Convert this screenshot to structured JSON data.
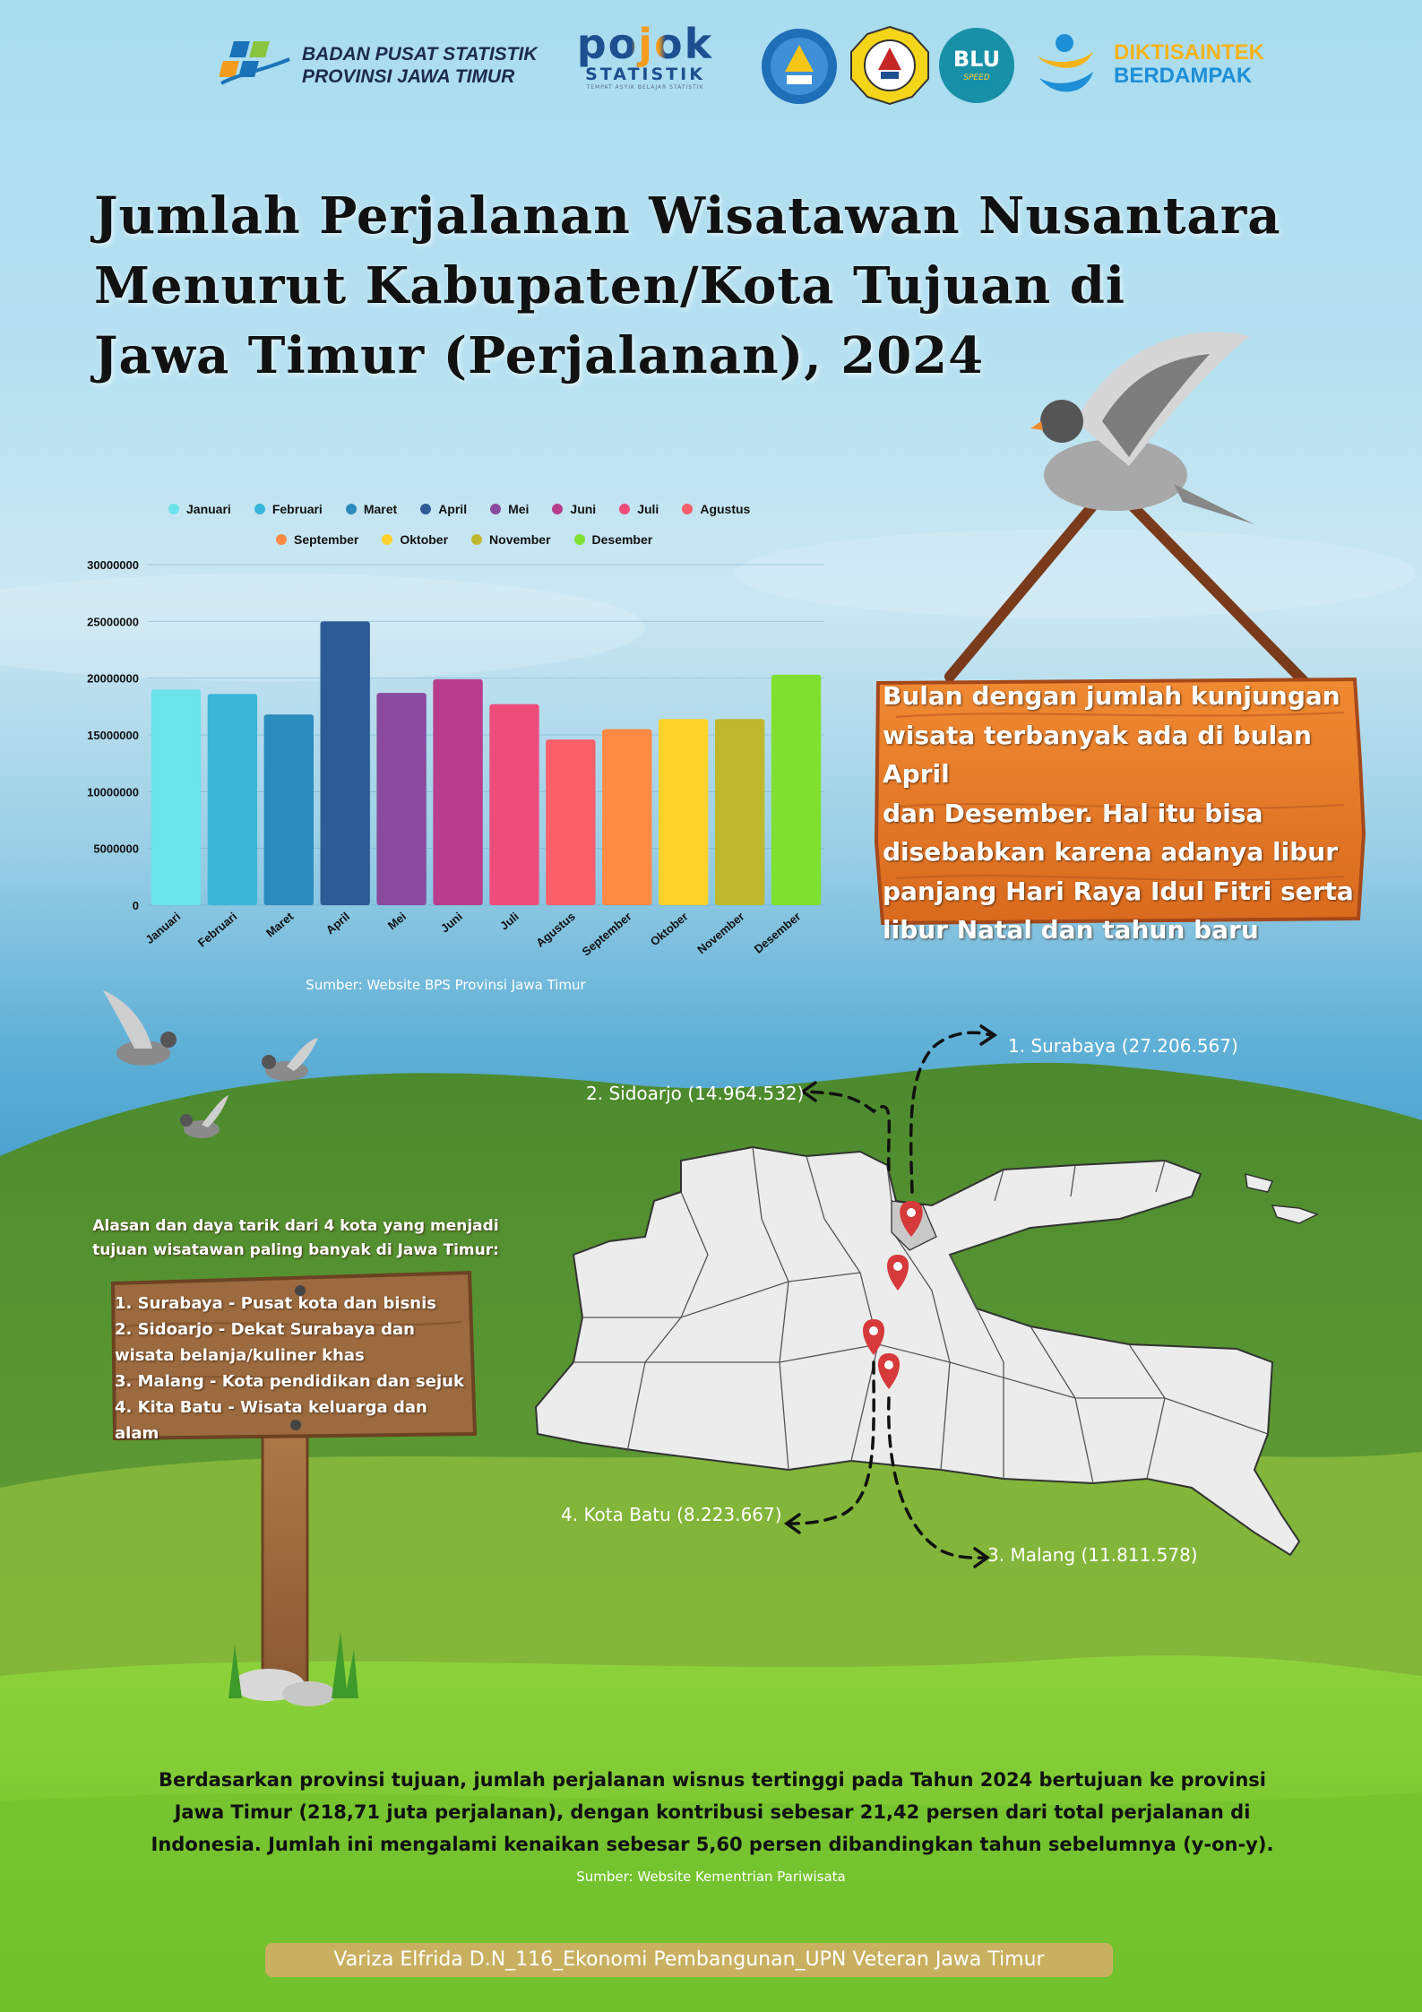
{
  "header": {
    "bps_line1": "BADAN PUSAT STATISTIK",
    "bps_line2": "PROVINSI JAWA TIMUR",
    "pojok_word": "pojok",
    "pojok_sub": "STATISTIK",
    "pojok_tag": "TEMPAT ASYIK BELAJAR STATISTIK",
    "blu_text": "BLU",
    "blu_sub": "SPEED",
    "dikti_line1": "DIKTISAINTEK",
    "dikti_line2": "BERDAMPAK"
  },
  "title_lines": [
    "Jumlah Perjalanan Wisatawan Nusantara",
    "Menurut Kabupaten/Kota Tujuan di",
    "Jawa Timur (Perjalanan), 2024"
  ],
  "chart_data": {
    "type": "bar",
    "title": "",
    "xlabel": "",
    "ylabel": "",
    "categories": [
      "Januari",
      "Februari",
      "Maret",
      "April",
      "Mei",
      "Juni",
      "Juli",
      "Agustus",
      "September",
      "Oktober",
      "November",
      "Desember"
    ],
    "values": [
      19000000,
      18600000,
      16800000,
      25000000,
      18700000,
      19900000,
      17700000,
      14600000,
      15500000,
      16400000,
      16400000,
      20300000
    ],
    "colors": [
      "#6ae3ea",
      "#3ab6d9",
      "#2b8bbd",
      "#2e5b96",
      "#8a4a9e",
      "#b83d8c",
      "#ee4d7c",
      "#fa5f6a",
      "#ff8a44",
      "#ffd22b",
      "#bfb82c",
      "#7fe030"
    ],
    "ylim": [
      0,
      30000000
    ],
    "yticks": [
      "0",
      "5000000",
      "10000000",
      "15000000",
      "20000000",
      "25000000",
      "30000000"
    ],
    "ytick_values": [
      0,
      5000000,
      10000000,
      15000000,
      20000000,
      25000000,
      30000000
    ],
    "legend_position": "top",
    "legend_rows": [
      [
        "Januari",
        "Februari",
        "Maret",
        "April",
        "Mei",
        "Juni",
        "Juli",
        "Agustus"
      ],
      [
        "September",
        "Oktober",
        "November",
        "Desember"
      ]
    ],
    "grid": true
  },
  "chart_source": "Sumber: Website BPS Provinsi Jawa Timur",
  "sign_top_lines": [
    "Bulan dengan jumlah kunjungan",
    "wisata terbanyak ada di bulan April",
    "dan Desember. Hal itu bisa",
    "disebabkan karena adanya libur",
    "panjang Hari Raya Idul Fitri serta",
    "libur Natal dan tahun baru"
  ],
  "reasons": {
    "heading_lines": [
      "Alasan dan daya tarik dari 4 kota yang menjadi",
      "tujuan wisatawan paling banyak di Jawa Timur:"
    ],
    "items": [
      "1. Surabaya - Pusat kota dan bisnis",
      "2. Sidoarjo - Dekat Surabaya dan",
      "wisata belanja/kuliner khas",
      "3. Malang - Kota pendidikan dan sejuk",
      "4. Kita Batu - Wisata keluarga dan alam"
    ]
  },
  "cities": {
    "surabaya": "1. Surabaya (27.206.567)",
    "sidoarjo": "2. Sidoarjo (14.964.532)",
    "malang": "3. Malang (11.811.578)",
    "batu": "4. Kota Batu (8.223.667)"
  },
  "summary_lines": [
    "Berdasarkan provinsi tujuan, jumlah perjalanan wisnus tertinggi pada Tahun 2024 bertujuan ke provinsi",
    "Jawa Timur (218,71 juta perjalanan), dengan kontribusi sebesar 21,42 persen dari total perjalanan di",
    "Indonesia. Jumlah ini mengalami kenaikan sebesar 5,60 persen dibandingkan tahun sebelumnya (y-on-y)."
  ],
  "summary_source": "Sumber: Website Kementrian Pariwisata",
  "footer": "Variza Elfrida D.N_116_Ekonomi Pembangunan_UPN Veteran Jawa Timur"
}
